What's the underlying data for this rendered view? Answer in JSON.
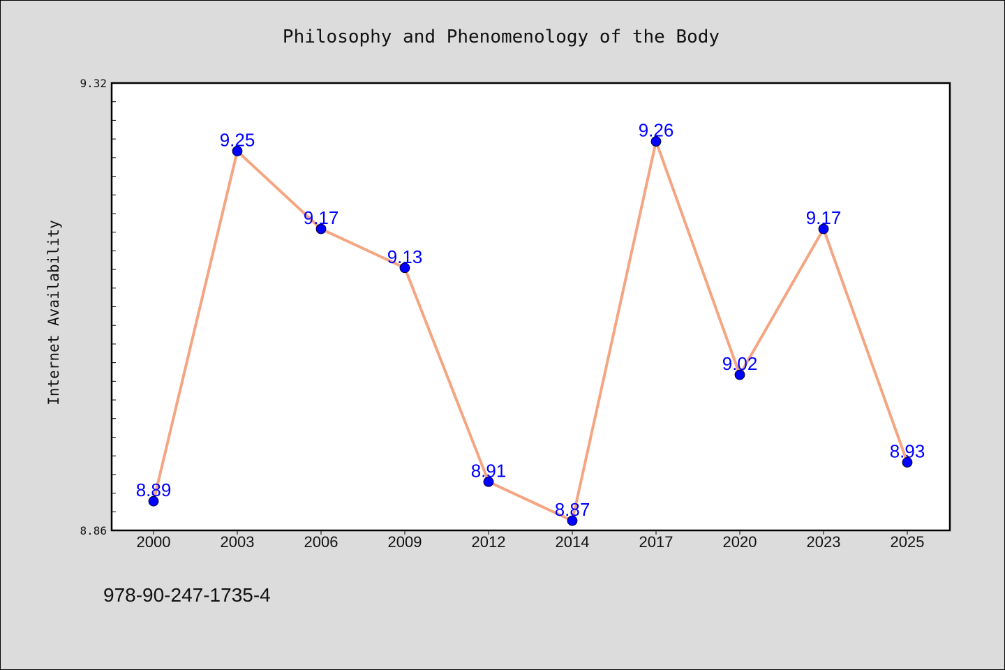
{
  "chart_data": {
    "type": "line",
    "title": "Philosophy and Phenomenology of the Body",
    "xlabel": "",
    "ylabel": "Internet Availability",
    "ylim": [
      8.86,
      9.32
    ],
    "y_tick_labels": [
      "9.32",
      "8.86"
    ],
    "categories": [
      "2000",
      "2003",
      "2006",
      "2009",
      "2012",
      "2014",
      "2017",
      "2020",
      "2023",
      "2025"
    ],
    "series": [
      {
        "values": [
          8.89,
          9.25,
          9.17,
          9.13,
          8.91,
          8.87,
          9.26,
          9.02,
          9.17,
          8.93
        ],
        "data_labels": [
          "8.89",
          "9.25",
          "9.17",
          "9.13",
          "8.91",
          "8.87",
          "9.26",
          "9.02",
          "9.17",
          "8.93"
        ]
      }
    ],
    "line_color": "#f4a582",
    "marker_color": "#0000ff",
    "label_color": "#0000ff",
    "grid": false,
    "legend": "none"
  },
  "footer": {
    "isbn": "978-90-247-1735-4"
  },
  "colors": {
    "background": "#dcdcdc",
    "plot_area": "#ffffff"
  }
}
